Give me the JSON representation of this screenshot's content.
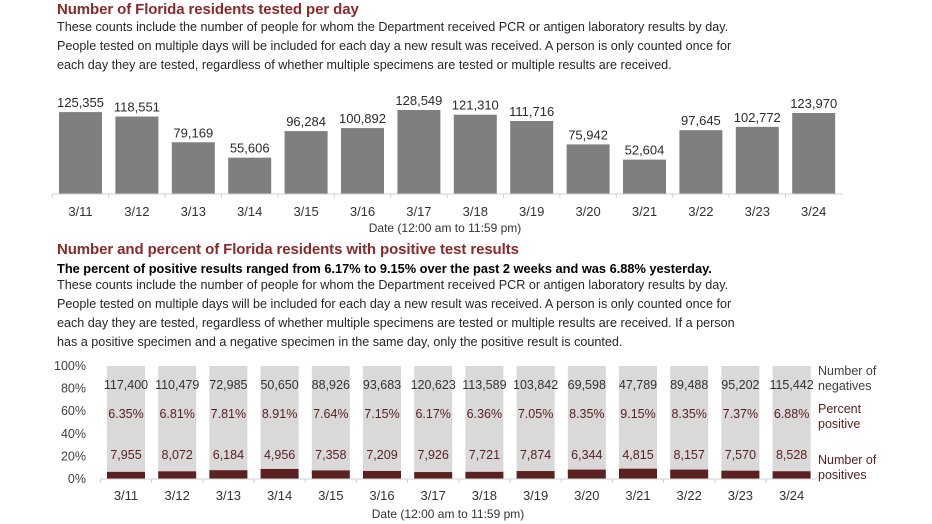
{
  "section1": {
    "title": "Number of Florida residents tested per day",
    "description": [
      "These counts include the number of people for whom the Department received PCR or antigen laboratory results by day.",
      "People tested on multiple days will be included for each day a new result was received. A person is only counted once for",
      "each day they are tested, regardless of whether multiple specimens are tested or multiple results are received."
    ]
  },
  "section2": {
    "title": "Number and percent of Florida residents with positive test results",
    "summary": "The percent of positive results ranged from 6.17% to 9.15% over the past 2 weeks and was 6.88% yesterday.",
    "description": [
      "These counts include the number of people for whom the Department received PCR or antigen laboratory results by day.",
      "People tested on multiple days will be included for each day a new result was received. A person is only counted once for",
      "each day they are tested, regardless of whether multiple specimens are tested or multiple results are received. If a person",
      "has a positive specimen and a negative specimen in the same day, only the positive result is counted."
    ]
  },
  "colors": {
    "title": "#8b2a2a",
    "bar_gray": "#7f7f7f",
    "negatives": "#d9d9d9",
    "positives": "#5a2120",
    "percent_text": "#5a2120"
  },
  "chart_data": [
    {
      "type": "bar",
      "title": "Number of Florida residents tested per day",
      "xlabel": "Date (12:00 am to 11:59 pm)",
      "ylabel": "",
      "categories": [
        "3/11",
        "3/12",
        "3/13",
        "3/14",
        "3/15",
        "3/16",
        "3/17",
        "3/18",
        "3/19",
        "3/20",
        "3/21",
        "3/22",
        "3/23",
        "3/24"
      ],
      "values": [
        125355,
        118551,
        79169,
        55606,
        96284,
        100892,
        128549,
        121310,
        111716,
        75942,
        52604,
        97645,
        102772,
        123970
      ],
      "value_labels": [
        "125,355",
        "118,551",
        "79,169",
        "55,606",
        "96,284",
        "100,892",
        "128,549",
        "121,310",
        "111,716",
        "75,942",
        "52,604",
        "97,645",
        "102,772",
        "123,970"
      ],
      "ylim": [
        0,
        140000
      ],
      "grid": false,
      "legend": "none"
    },
    {
      "type": "bar",
      "stacked": "percent",
      "title": "Number and percent of Florida residents with positive test results",
      "xlabel": "Date (12:00 am to 11:59 pm)",
      "categories": [
        "3/11",
        "3/12",
        "3/13",
        "3/14",
        "3/15",
        "3/16",
        "3/17",
        "3/18",
        "3/19",
        "3/20",
        "3/21",
        "3/22",
        "3/23",
        "3/24"
      ],
      "yticks": [
        "0%",
        "20%",
        "40%",
        "60%",
        "80%",
        "100%"
      ],
      "ylim": [
        0,
        100
      ],
      "series": [
        {
          "name": "Number of positives",
          "values": [
            7955,
            8072,
            6184,
            4956,
            7358,
            7209,
            7926,
            7721,
            7874,
            6344,
            4815,
            8157,
            7570,
            8528
          ],
          "labels": [
            "7,955",
            "8,072",
            "6,184",
            "4,956",
            "7,358",
            "7,209",
            "7,926",
            "7,721",
            "7,874",
            "6,344",
            "4,815",
            "8,157",
            "7,570",
            "8,528"
          ]
        },
        {
          "name": "Number of negatives",
          "values": [
            117400,
            110479,
            72985,
            50650,
            88926,
            93683,
            120623,
            113589,
            103842,
            69598,
            47789,
            89488,
            95202,
            115442
          ],
          "labels": [
            "117,400",
            "110,479",
            "72,985",
            "50,650",
            "88,926",
            "93,683",
            "120,623",
            "113,589",
            "103,842",
            "69,598",
            "47,789",
            "89,488",
            "95,202",
            "115,442"
          ]
        }
      ],
      "percent_positive": [
        6.35,
        6.81,
        7.81,
        8.91,
        7.64,
        7.15,
        6.17,
        6.36,
        7.05,
        8.35,
        9.15,
        8.35,
        7.37,
        6.88
      ],
      "percent_labels": [
        "6.35%",
        "6.81%",
        "7.81%",
        "8.91%",
        "7.64%",
        "7.15%",
        "6.17%",
        "6.36%",
        "7.05%",
        "8.35%",
        "9.15%",
        "8.35%",
        "7.37%",
        "6.88%"
      ],
      "legend_labels": {
        "negatives": [
          "Number of",
          "negatives"
        ],
        "percent": [
          "Percent",
          "positive"
        ],
        "positives": [
          "Number of",
          "positives"
        ]
      },
      "legend": "right",
      "grid": false
    }
  ]
}
